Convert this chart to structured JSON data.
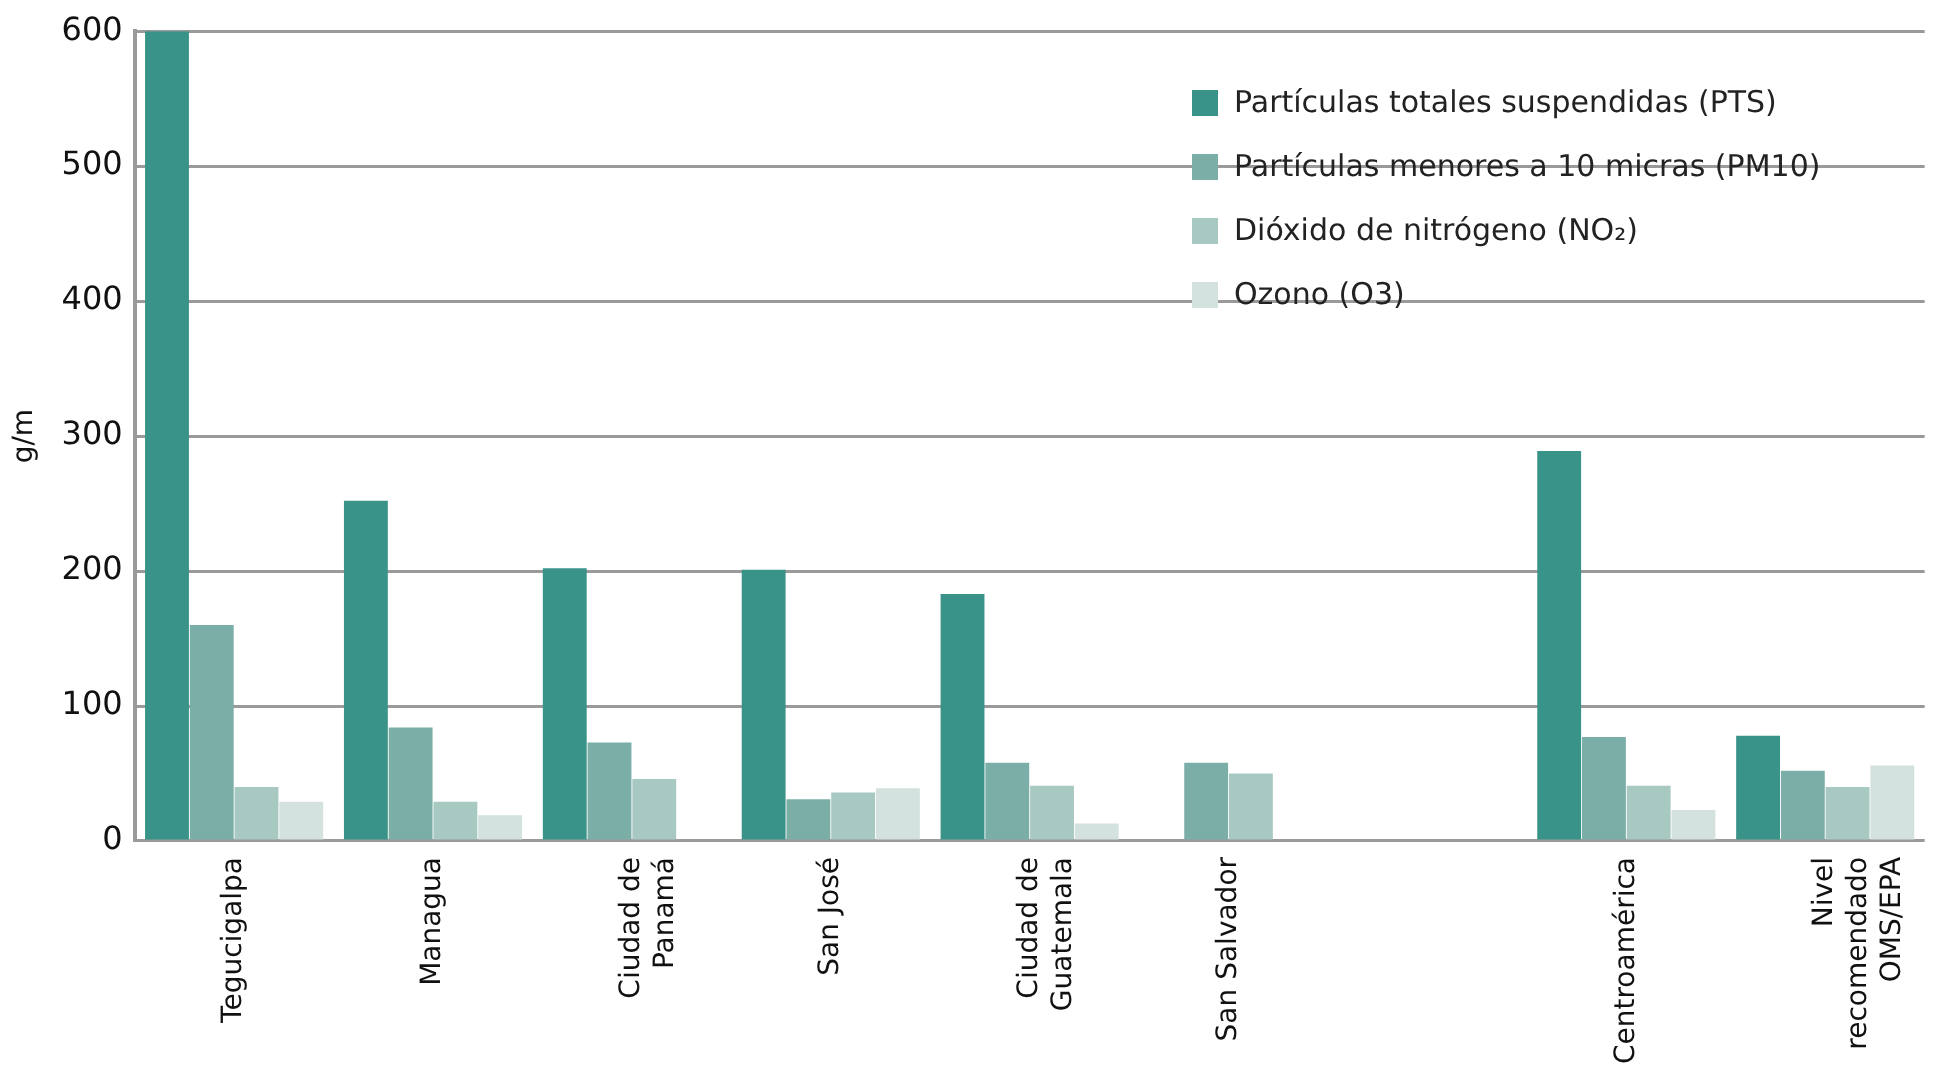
{
  "chart_data": {
    "type": "bar",
    "ylabel": "g/m",
    "categories": [
      "Tegucigalpa",
      "Managua",
      "Ciudad de\nPanamá",
      "San José",
      "Ciudad de\nGuatemala",
      "San Salvador",
      null,
      "Centroamérica",
      "Nivel\nrecomendado\nOMS/EPA"
    ],
    "series": [
      {
        "name": "Partículas totales suspendidas (PTS)",
        "color": "#3a9388",
        "values": [
          600,
          252,
          202,
          201,
          183,
          null,
          null,
          289,
          78
        ]
      },
      {
        "name": "Partículas menores a 10 micras (PM10)",
        "color": "#7aaea6",
        "values": [
          160,
          84,
          73,
          31,
          58,
          58,
          null,
          77,
          52
        ]
      },
      {
        "name": "Dióxido de nitrógeno (NO₂)",
        "color": "#a8c8c2",
        "values": [
          40,
          29,
          46,
          36,
          41,
          50,
          null,
          41,
          40
        ]
      },
      {
        "name": "Ozono (O3)",
        "color": "#d3e2de",
        "values": [
          29,
          19,
          null,
          39,
          13,
          null,
          null,
          23,
          56
        ]
      }
    ],
    "ylim": [
      0,
      600
    ],
    "yticks": [
      0,
      100,
      200,
      300,
      400,
      500,
      600
    ],
    "grid": "y",
    "legend": "top right"
  }
}
